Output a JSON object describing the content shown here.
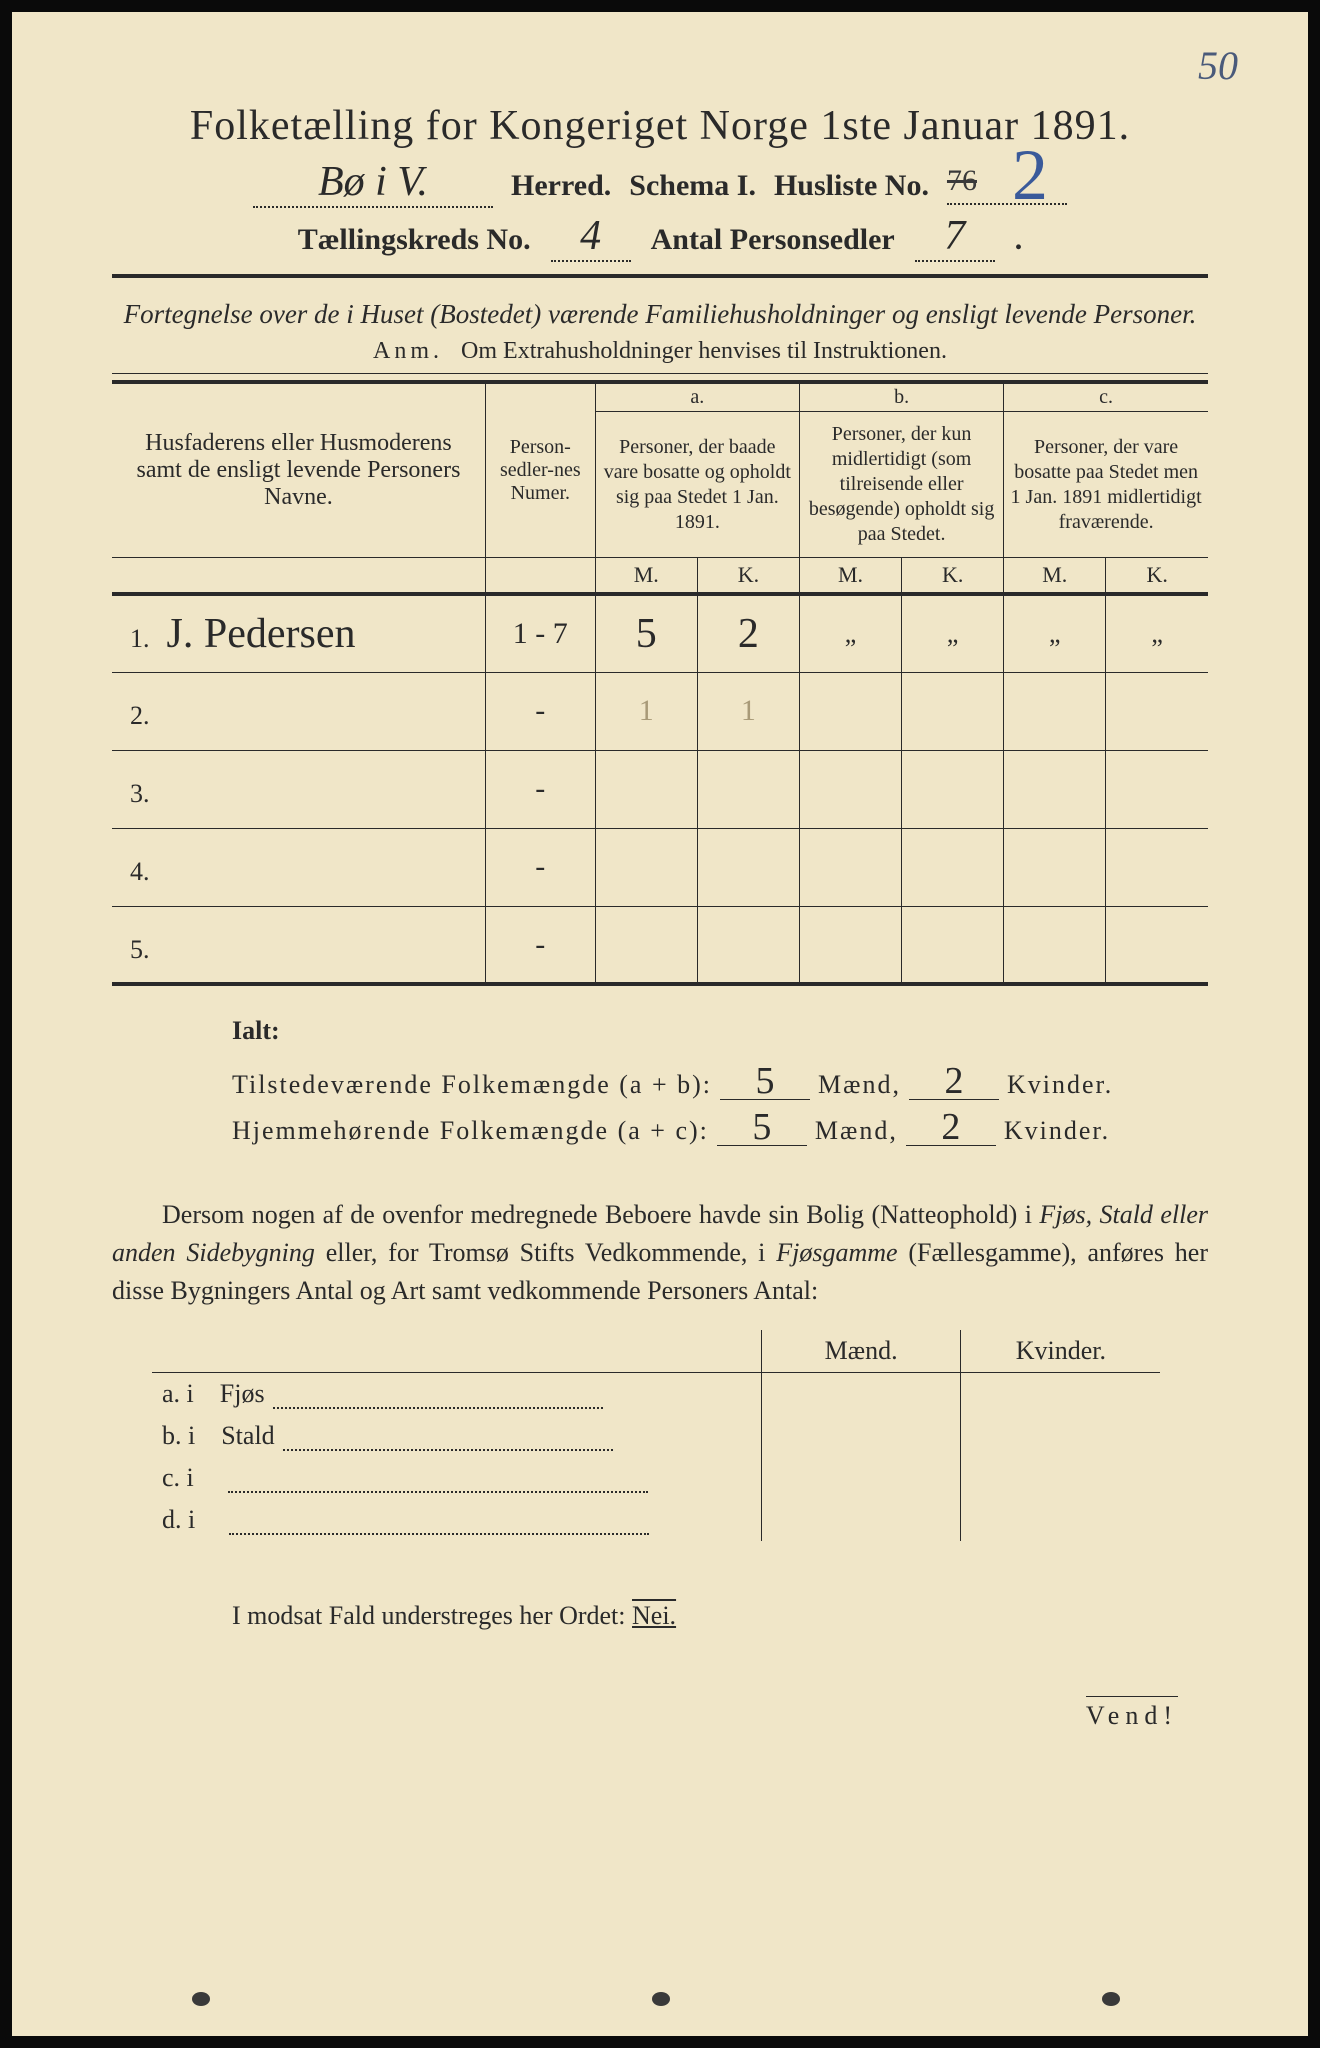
{
  "page_corner_number": "50",
  "title": "Folketælling for Kongeriget Norge 1ste Januar 1891.",
  "header": {
    "herred_value": "Bø i V.",
    "herred_label": "Herred.",
    "schema_label": "Schema I.",
    "husliste_label": "Husliste No.",
    "husliste_crossed": "76",
    "husliste_value": "2",
    "kreds_label": "Tællingskreds No.",
    "kreds_value": "4",
    "antal_label": "Antal Personsedler",
    "antal_value": "7"
  },
  "fortegnelse": "Fortegnelse over de i Huset (Bostedet) værende Familiehusholdninger og ensligt levende Personer.",
  "anm_label": "Anm.",
  "anm_text": "Om Extrahusholdninger henvises til Instruktionen.",
  "table": {
    "col_name": "Husfaderens eller Husmoderens samt de ensligt levende Personers Navne.",
    "col_num": "Person-sedler-nes Numer.",
    "group_a_letter": "a.",
    "group_a": "Personer, der baade vare bosatte og opholdt sig paa Stedet 1 Jan. 1891.",
    "group_b_letter": "b.",
    "group_b": "Personer, der kun midlertidigt (som tilreisende eller besøgende) opholdt sig paa Stedet.",
    "group_c_letter": "c.",
    "group_c": "Personer, der vare bosatte paa Stedet men 1 Jan. 1891 midlertidigt fraværende.",
    "M": "M.",
    "K": "K.",
    "rows": [
      {
        "n": "1.",
        "name": "J. Pedersen",
        "num": "1 - 7",
        "aM": "5",
        "aK": "2",
        "bM": "„",
        "bK": "„",
        "cM": "„",
        "cK": "„"
      },
      {
        "n": "2.",
        "name": "",
        "num": "-",
        "aM": "1",
        "aK": "1",
        "bM": "",
        "bK": "",
        "cM": "",
        "cK": "",
        "faint": true
      },
      {
        "n": "3.",
        "name": "",
        "num": "-",
        "aM": "",
        "aK": "",
        "bM": "",
        "bK": "",
        "cM": "",
        "cK": ""
      },
      {
        "n": "4.",
        "name": "",
        "num": "-",
        "aM": "",
        "aK": "",
        "bM": "",
        "bK": "",
        "cM": "",
        "cK": ""
      },
      {
        "n": "5.",
        "name": "",
        "num": "-",
        "aM": "",
        "aK": "",
        "bM": "",
        "bK": "",
        "cM": "",
        "cK": ""
      }
    ]
  },
  "ialt": {
    "title": "Ialt:",
    "row1_label": "Tilstedeværende Folkemængde (a + b):",
    "row1_m": "5",
    "row1_k": "2",
    "row2_label": "Hjemmehørende Folkemængde (a + c):",
    "row2_m": "5",
    "row2_k": "2",
    "maend": "Mænd,",
    "kvinder": "Kvinder."
  },
  "dersom": {
    "p1": "Dersom nogen af de ovenfor medregnede Beboere havde sin Bolig (Natteophold) i ",
    "it1": "Fjøs, Stald eller anden Sidebygning",
    "p2": " eller, for Tromsø Stifts Vedkommende, i ",
    "it2": "Fjøsgamme",
    "p3": " (Fællesgamme), anføres her disse Bygningers Antal og Art samt vedkommende Personers Antal:"
  },
  "bygn": {
    "maend": "Mænd.",
    "kvinder": "Kvinder.",
    "rows": [
      {
        "l": "a.  i",
        "t": "Fjøs"
      },
      {
        "l": "b.  i",
        "t": "Stald"
      },
      {
        "l": "c.  i",
        "t": ""
      },
      {
        "l": "d.  i",
        "t": ""
      }
    ]
  },
  "modsat_pre": "I modsat Fald understreges her Ordet: ",
  "modsat_nei": "Nei.",
  "vend": "Vend!"
}
